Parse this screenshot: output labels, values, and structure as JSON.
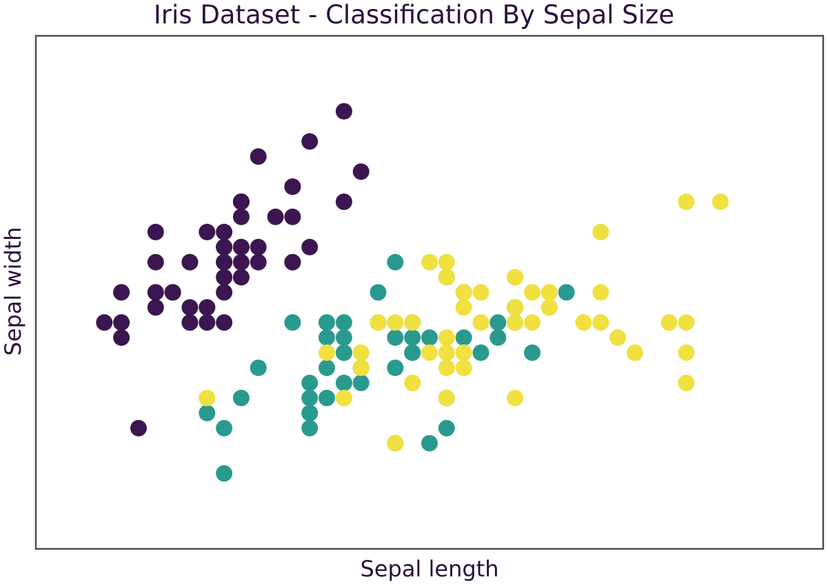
{
  "chart_data": {
    "type": "scatter",
    "title": "Iris Dataset - Classification By Sepal Size",
    "xlabel": "Sepal length",
    "ylabel": "Sepal width",
    "xlim": [
      3.9,
      8.5
    ],
    "ylim": [
      1.5,
      4.9
    ],
    "grid": false,
    "ticks_visible": false,
    "series": [
      {
        "color": "#3b1650",
        "points": [
          [
            5.1,
            3.5
          ],
          [
            4.9,
            3.0
          ],
          [
            4.7,
            3.2
          ],
          [
            4.6,
            3.1
          ],
          [
            5.0,
            3.6
          ],
          [
            5.4,
            3.9
          ],
          [
            4.6,
            3.4
          ],
          [
            5.0,
            3.4
          ],
          [
            4.4,
            2.9
          ],
          [
            4.9,
            3.1
          ],
          [
            5.4,
            3.7
          ],
          [
            4.8,
            3.4
          ],
          [
            4.8,
            3.0
          ],
          [
            4.3,
            3.0
          ],
          [
            5.8,
            4.0
          ],
          [
            5.7,
            4.4
          ],
          [
            5.4,
            3.9
          ],
          [
            5.1,
            3.5
          ],
          [
            5.7,
            3.8
          ],
          [
            5.1,
            3.8
          ],
          [
            5.4,
            3.4
          ],
          [
            5.1,
            3.7
          ],
          [
            4.6,
            3.6
          ],
          [
            5.1,
            3.3
          ],
          [
            4.8,
            3.4
          ],
          [
            5.0,
            3.0
          ],
          [
            5.0,
            3.4
          ],
          [
            5.2,
            3.5
          ],
          [
            5.2,
            3.4
          ],
          [
            4.7,
            3.2
          ],
          [
            4.8,
            3.1
          ],
          [
            5.4,
            3.4
          ],
          [
            5.2,
            4.1
          ],
          [
            5.5,
            4.2
          ],
          [
            4.9,
            3.1
          ],
          [
            5.0,
            3.2
          ],
          [
            5.5,
            3.5
          ],
          [
            4.9,
            3.6
          ],
          [
            4.4,
            3.0
          ],
          [
            5.1,
            3.4
          ],
          [
            5.0,
            3.5
          ],
          [
            4.5,
            2.3
          ],
          [
            4.4,
            3.2
          ],
          [
            5.0,
            3.5
          ],
          [
            5.1,
            3.8
          ],
          [
            4.8,
            3.0
          ],
          [
            5.1,
            3.8
          ],
          [
            4.6,
            3.2
          ],
          [
            5.3,
            3.7
          ],
          [
            5.0,
            3.3
          ]
        ]
      },
      {
        "color": "#2a9a8e",
        "points": [
          [
            7.0,
            3.2
          ],
          [
            6.4,
            3.2
          ],
          [
            6.9,
            3.1
          ],
          [
            5.5,
            2.3
          ],
          [
            6.5,
            2.8
          ],
          [
            5.7,
            2.8
          ],
          [
            6.3,
            3.3
          ],
          [
            4.9,
            2.4
          ],
          [
            6.6,
            2.9
          ],
          [
            5.2,
            2.7
          ],
          [
            5.0,
            2.0
          ],
          [
            5.9,
            3.0
          ],
          [
            6.0,
            2.2
          ],
          [
            6.1,
            2.9
          ],
          [
            5.6,
            2.9
          ],
          [
            6.7,
            3.1
          ],
          [
            5.6,
            3.0
          ],
          [
            5.8,
            2.7
          ],
          [
            6.2,
            2.2
          ],
          [
            5.6,
            2.5
          ],
          [
            5.9,
            3.2
          ],
          [
            6.1,
            2.8
          ],
          [
            6.3,
            2.5
          ],
          [
            6.1,
            2.8
          ],
          [
            6.4,
            2.9
          ],
          [
            6.6,
            3.0
          ],
          [
            6.8,
            2.8
          ],
          [
            6.7,
            3.0
          ],
          [
            6.0,
            2.9
          ],
          [
            5.7,
            2.6
          ],
          [
            5.5,
            2.4
          ],
          [
            5.5,
            2.4
          ],
          [
            5.8,
            2.7
          ],
          [
            6.0,
            2.7
          ],
          [
            5.4,
            3.0
          ],
          [
            6.0,
            3.4
          ],
          [
            6.7,
            3.1
          ],
          [
            6.3,
            2.3
          ],
          [
            5.6,
            3.0
          ],
          [
            5.5,
            2.5
          ],
          [
            5.5,
            2.6
          ],
          [
            6.1,
            3.0
          ],
          [
            5.8,
            2.6
          ],
          [
            5.0,
            2.3
          ],
          [
            5.6,
            2.7
          ],
          [
            5.7,
            3.0
          ],
          [
            5.7,
            2.9
          ],
          [
            6.2,
            2.9
          ],
          [
            5.1,
            2.5
          ],
          [
            5.7,
            2.8
          ]
        ]
      },
      {
        "color": "#f0e040",
        "points": [
          [
            6.3,
            3.3
          ],
          [
            5.8,
            2.7
          ],
          [
            7.1,
            3.0
          ],
          [
            6.3,
            2.9
          ],
          [
            6.5,
            3.0
          ],
          [
            7.6,
            3.0
          ],
          [
            4.9,
            2.5
          ],
          [
            7.3,
            2.9
          ],
          [
            6.7,
            2.5
          ],
          [
            7.2,
            3.6
          ],
          [
            6.5,
            3.2
          ],
          [
            6.4,
            2.7
          ],
          [
            6.8,
            3.0
          ],
          [
            5.7,
            2.5
          ],
          [
            5.8,
            2.8
          ],
          [
            6.4,
            3.2
          ],
          [
            6.5,
            3.0
          ],
          [
            7.7,
            3.8
          ],
          [
            7.7,
            2.6
          ],
          [
            6.0,
            2.2
          ],
          [
            6.9,
            3.2
          ],
          [
            5.6,
            2.8
          ],
          [
            7.7,
            2.8
          ],
          [
            6.3,
            2.7
          ],
          [
            6.7,
            3.3
          ],
          [
            7.2,
            3.2
          ],
          [
            6.2,
            2.8
          ],
          [
            6.1,
            3.0
          ],
          [
            6.4,
            2.8
          ],
          [
            7.2,
            3.0
          ],
          [
            7.4,
            2.8
          ],
          [
            7.9,
            3.8
          ],
          [
            6.4,
            2.8
          ],
          [
            6.3,
            2.8
          ],
          [
            6.1,
            2.6
          ],
          [
            7.7,
            3.0
          ],
          [
            6.3,
            3.4
          ],
          [
            6.4,
            3.1
          ],
          [
            6.0,
            3.0
          ],
          [
            6.9,
            3.1
          ],
          [
            6.7,
            3.1
          ],
          [
            6.9,
            3.1
          ],
          [
            5.8,
            2.7
          ],
          [
            6.8,
            3.2
          ],
          [
            6.7,
            3.3
          ],
          [
            6.7,
            3.0
          ],
          [
            6.3,
            2.5
          ],
          [
            6.5,
            3.0
          ],
          [
            6.2,
            3.4
          ],
          [
            5.9,
            3.0
          ]
        ]
      }
    ]
  }
}
